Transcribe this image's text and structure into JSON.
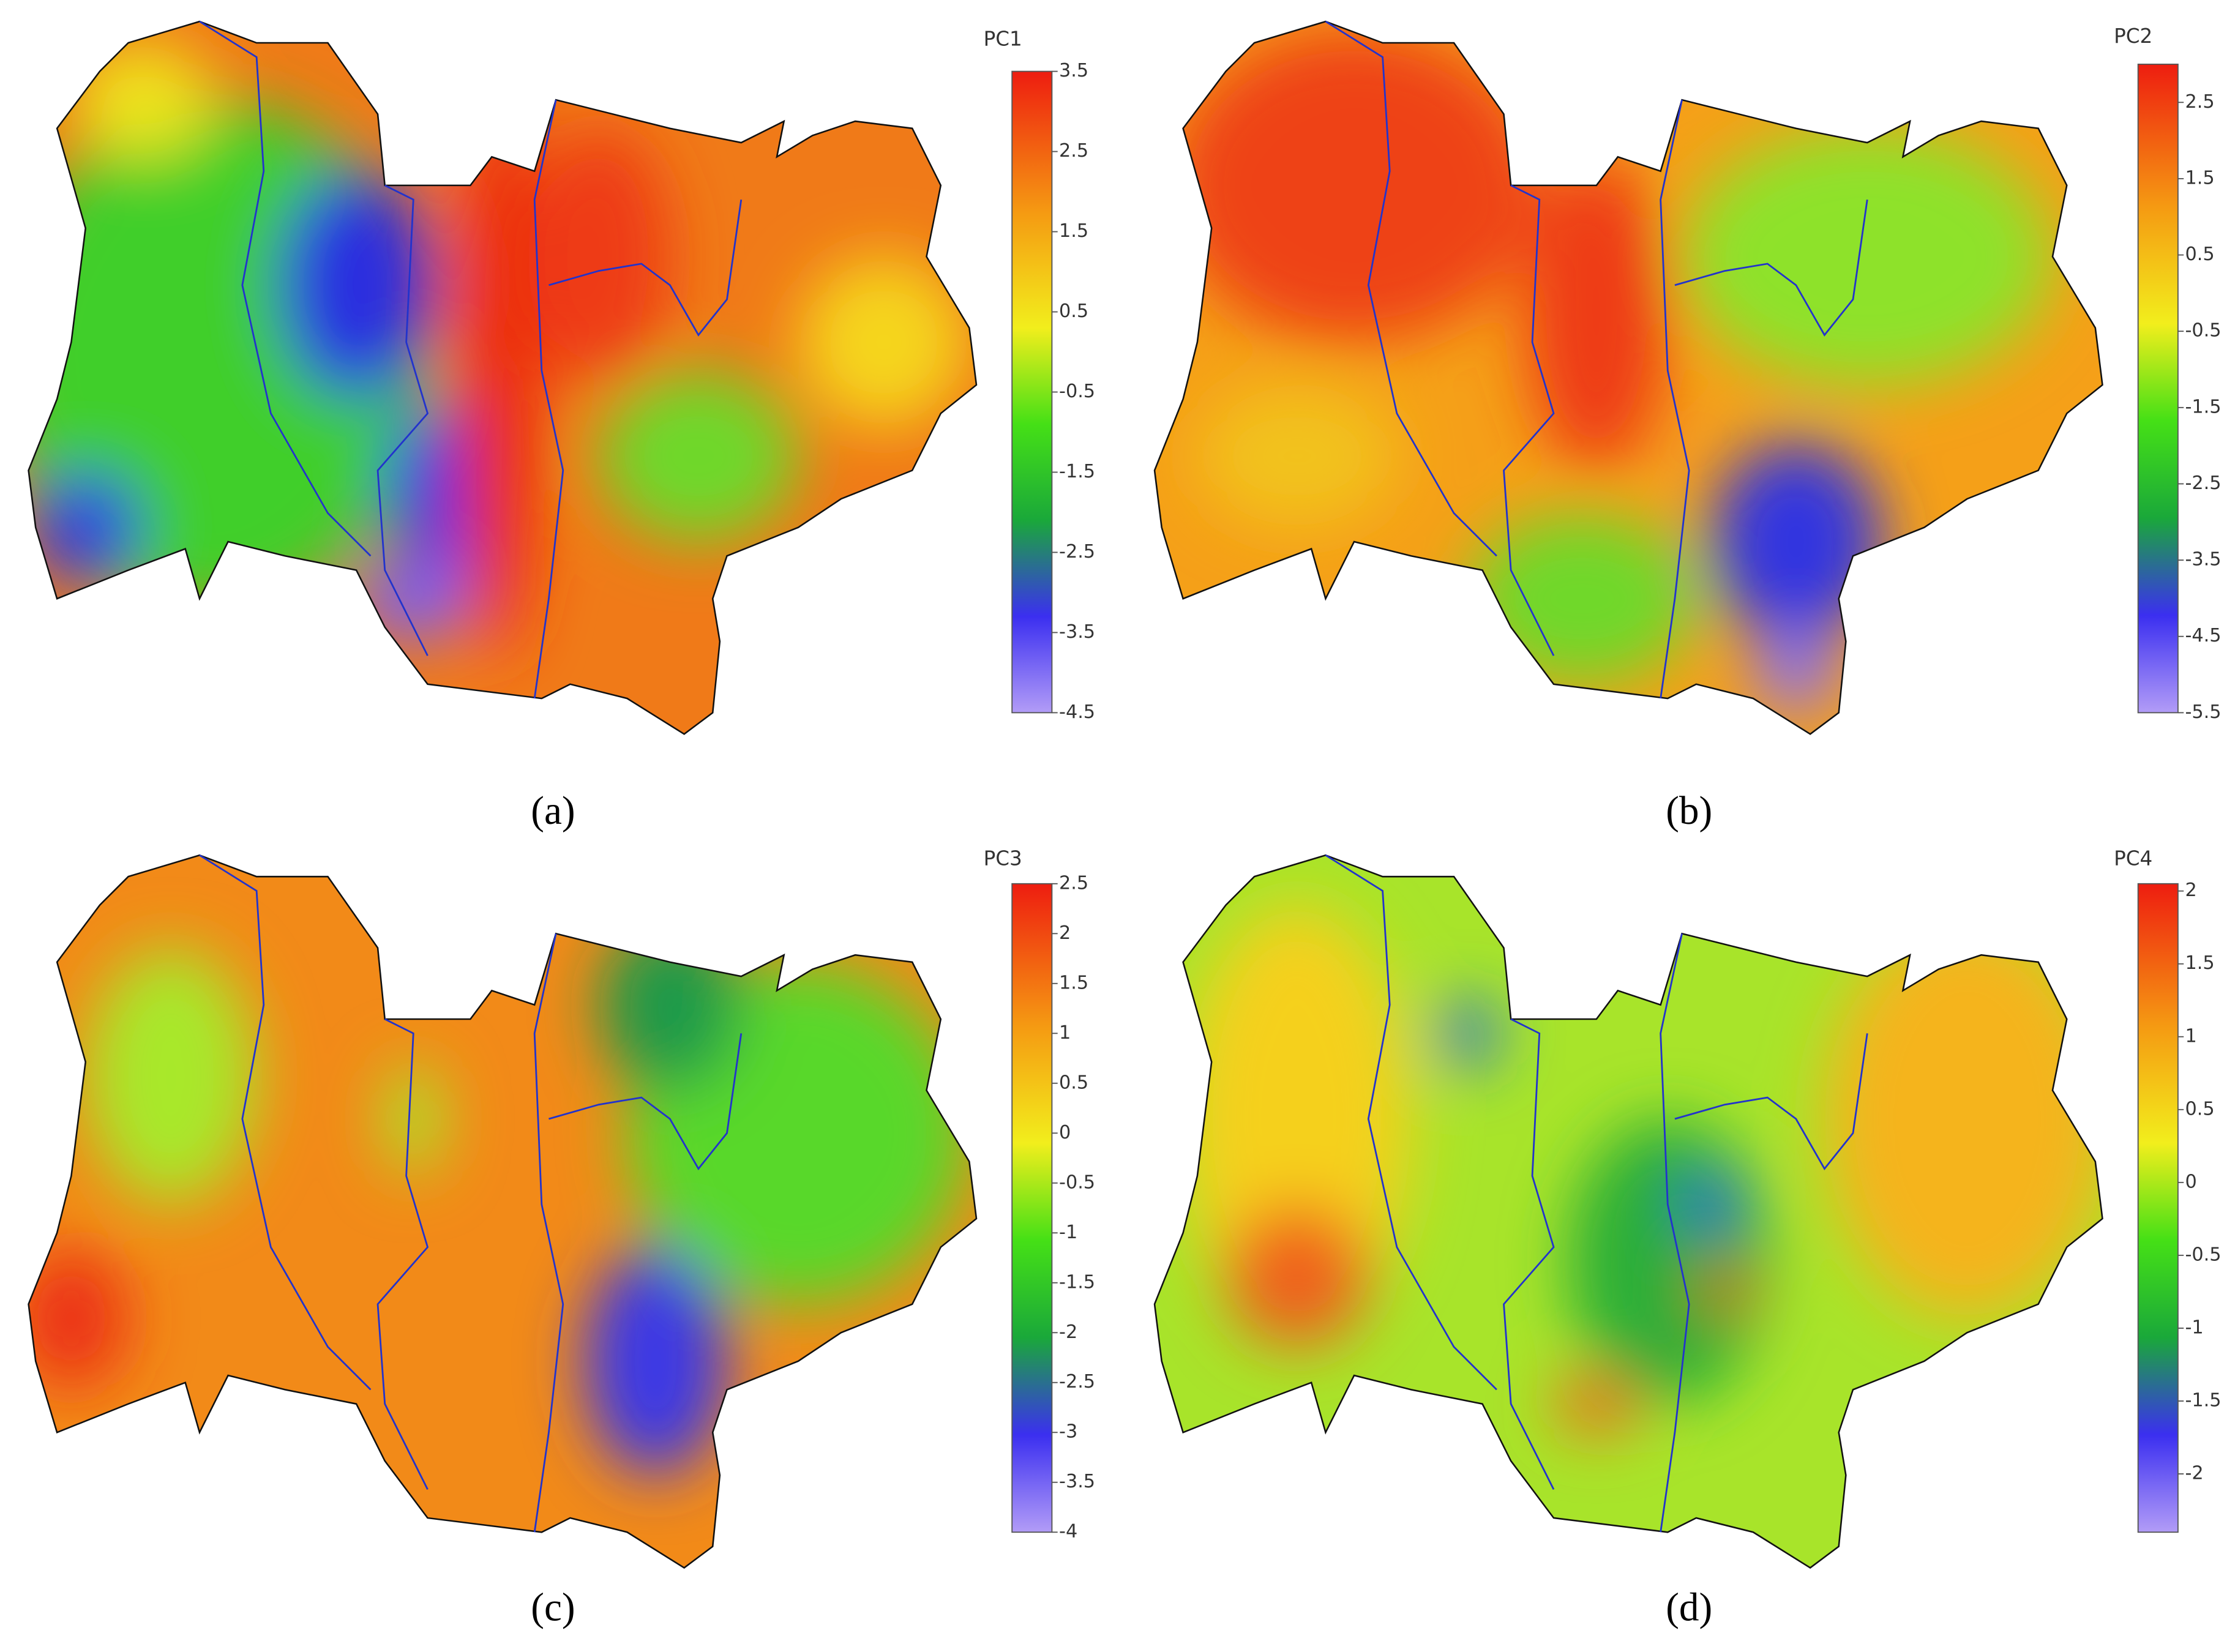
{
  "panels": [
    {
      "colorbar": {
        "title": "PC1",
        "lim": [
          -4.5,
          3.5
        ],
        "ticks": [
          3.5,
          2.5,
          1.5,
          0.5,
          -0.5,
          -1.5,
          -2.5,
          -3.5,
          -4.5
        ]
      },
      "caption": "(a)"
    },
    {
      "colorbar": {
        "title": "PC2",
        "lim": [
          -5.5,
          3
        ],
        "ticks": [
          2.5,
          1.5,
          0.5,
          -0.5,
          -1.5,
          -2.5,
          -3.5,
          -4.5,
          -5.5
        ]
      },
      "caption": "(b)"
    },
    {
      "colorbar": {
        "title": "PC3",
        "lim": [
          -4,
          2.5
        ],
        "ticks": [
          2.5,
          2,
          1.5,
          1,
          0.5,
          0,
          -0.5,
          -1,
          -1.5,
          -2,
          -2.5,
          -3,
          -3.5,
          -4
        ]
      },
      "caption": "(c)"
    },
    {
      "colorbar": {
        "title": "PC4",
        "lim": [
          -2.4,
          2.05
        ],
        "ticks": [
          2,
          1.5,
          1,
          0.5,
          0,
          -0.5,
          -1,
          -1.5,
          -2
        ]
      },
      "caption": "(d)"
    }
  ]
}
